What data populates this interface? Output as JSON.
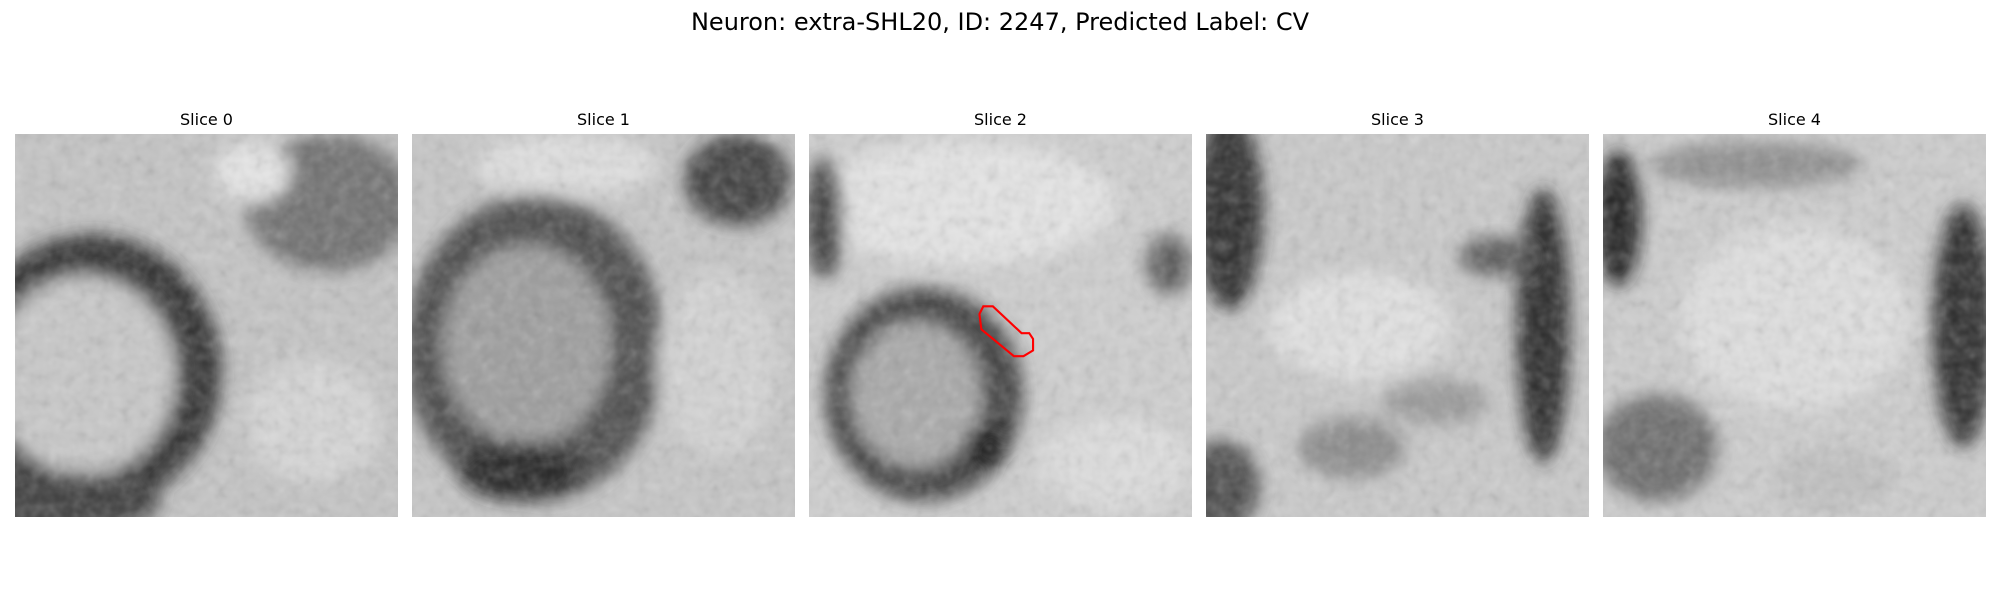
{
  "figure": {
    "title": "Neuron: extra-SHL20, ID: 2247, Predicted Label: CV"
  },
  "slices": [
    {
      "label": "Slice 0"
    },
    {
      "label": "Slice 1"
    },
    {
      "label": "Slice 2",
      "has_contour": true,
      "contour_color": "#ff0000"
    },
    {
      "label": "Slice 3"
    },
    {
      "label": "Slice 4"
    }
  ],
  "colors": {
    "background": "#ffffff",
    "contour": "#ff0000"
  }
}
